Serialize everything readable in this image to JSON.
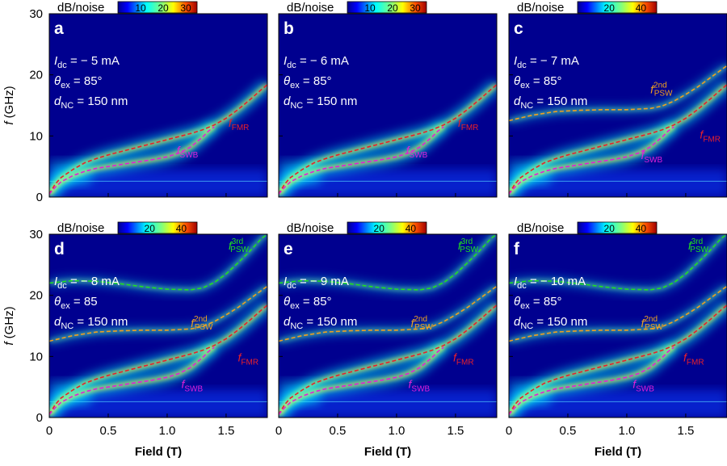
{
  "figure": {
    "y_axis_label": "f (GHz)",
    "x_axis_label": "Field (T)",
    "colorbar_label": "dB/noise",
    "y_ticks": [
      "0",
      "10",
      "20",
      "30"
    ],
    "x_ticks": [
      "0",
      "0.5",
      "1.0",
      "1.5"
    ],
    "colors": {
      "fmr": "#e8202a",
      "swb": "#e020d8",
      "psw2": "#f0a020",
      "psw3": "#20e020",
      "background": "#00008f"
    }
  },
  "chart_data": [
    {
      "type": "heatmap",
      "panel": "a",
      "params": [
        "Idc = − 5 mA",
        "θex = 85°",
        "dNC = 150 nm"
      ],
      "colorbar_ticks": [
        "10",
        "20",
        "30"
      ],
      "colorbar_range": [
        0,
        35
      ],
      "xlim": [
        0,
        1.85
      ],
      "ylim": [
        0,
        30
      ],
      "xlabel": "Field (T)",
      "ylabel": "f (GHz)",
      "annotations": [
        {
          "label": "fFMR",
          "x": 1.52,
          "y": 11.5
        },
        {
          "label": "fSWB",
          "x": 1.08,
          "y": 7.0
        }
      ],
      "series": [
        {
          "name": "FMR",
          "x": [
            0,
            0.05,
            0.1,
            0.2,
            0.3,
            0.4,
            0.5,
            0.6,
            0.7,
            0.8,
            0.9,
            1.0,
            1.1,
            1.2,
            1.3,
            1.4,
            1.5,
            1.6,
            1.7,
            1.8,
            1.85
          ],
          "y": [
            0.5,
            2.1,
            3.2,
            4.5,
            5.6,
            6.3,
            6.9,
            7.4,
            7.9,
            8.4,
            8.9,
            9.4,
            9.9,
            10.4,
            11.0,
            11.8,
            12.9,
            14.3,
            15.9,
            17.6,
            18.4
          ]
        },
        {
          "name": "SWB",
          "x": [
            0,
            0.05,
            0.1,
            0.2,
            0.3,
            0.4,
            0.5,
            0.6,
            0.7,
            0.8,
            0.9,
            1.0,
            1.1,
            1.2,
            1.3,
            1.35,
            1.4
          ],
          "y": [
            0.5,
            1.6,
            2.5,
            3.5,
            4.2,
            4.7,
            5.0,
            5.3,
            5.6,
            5.9,
            6.2,
            6.6,
            7.2,
            8.2,
            9.8,
            10.8,
            11.5
          ]
        }
      ]
    },
    {
      "type": "heatmap",
      "panel": "b",
      "params": [
        "Idc = − 6 mA",
        "θex = 85°",
        "dNC = 150 nm"
      ],
      "colorbar_ticks": [
        "10",
        "20",
        "30"
      ],
      "colorbar_range": [
        0,
        35
      ],
      "xlim": [
        0,
        1.85
      ],
      "ylim": [
        0,
        30
      ],
      "xlabel": "Field (T)",
      "ylabel": "f (GHz)",
      "annotations": [
        {
          "label": "fFMR",
          "x": 1.52,
          "y": 11.5
        },
        {
          "label": "fSWB",
          "x": 1.08,
          "y": 7.0
        }
      ],
      "series": [
        {
          "name": "FMR",
          "x": [
            0,
            0.05,
            0.1,
            0.2,
            0.3,
            0.4,
            0.5,
            0.6,
            0.7,
            0.8,
            0.9,
            1.0,
            1.1,
            1.2,
            1.3,
            1.4,
            1.5,
            1.6,
            1.7,
            1.8,
            1.85
          ],
          "y": [
            0.5,
            2.1,
            3.2,
            4.5,
            5.6,
            6.3,
            6.9,
            7.4,
            7.9,
            8.4,
            8.9,
            9.4,
            9.9,
            10.4,
            11.0,
            11.8,
            12.9,
            14.3,
            15.9,
            17.6,
            18.4
          ]
        },
        {
          "name": "SWB",
          "x": [
            0,
            0.05,
            0.1,
            0.2,
            0.3,
            0.4,
            0.5,
            0.6,
            0.7,
            0.8,
            0.9,
            1.0,
            1.1,
            1.2,
            1.3,
            1.35,
            1.4
          ],
          "y": [
            0.5,
            1.6,
            2.5,
            3.5,
            4.2,
            4.7,
            5.0,
            5.3,
            5.6,
            5.9,
            6.2,
            6.6,
            7.2,
            8.2,
            9.8,
            10.8,
            11.5
          ]
        }
      ]
    },
    {
      "type": "heatmap",
      "panel": "c",
      "params": [
        "Idc = − 7 mA",
        "θex = 85°",
        "dNC = 150 nm"
      ],
      "colorbar_ticks": [
        "20",
        "40"
      ],
      "colorbar_range": [
        0,
        50
      ],
      "xlim": [
        0,
        1.85
      ],
      "ylim": [
        0,
        30
      ],
      "xlabel": "Field (T)",
      "ylabel": "f (GHz)",
      "annotations": [
        {
          "label": "fFMR",
          "x": 1.62,
          "y": 9.6
        },
        {
          "label": "fSWB",
          "x": 1.12,
          "y": 6.2
        },
        {
          "label": "f2ndPSW",
          "x": 1.2,
          "y": 17.0
        }
      ],
      "series": [
        {
          "name": "FMR",
          "x": [
            0,
            0.05,
            0.1,
            0.2,
            0.3,
            0.4,
            0.5,
            0.6,
            0.7,
            0.8,
            0.9,
            1.0,
            1.1,
            1.2,
            1.3,
            1.4,
            1.5,
            1.6,
            1.7,
            1.8,
            1.85
          ],
          "y": [
            0.5,
            2.1,
            3.2,
            4.5,
            5.6,
            6.3,
            6.9,
            7.4,
            7.9,
            8.4,
            8.9,
            9.4,
            9.9,
            10.4,
            11.0,
            11.8,
            12.9,
            14.3,
            15.9,
            17.6,
            18.4
          ]
        },
        {
          "name": "SWB",
          "x": [
            0,
            0.05,
            0.1,
            0.2,
            0.3,
            0.4,
            0.5,
            0.6,
            0.7,
            0.8,
            0.9,
            1.0,
            1.1,
            1.2,
            1.3,
            1.35,
            1.4
          ],
          "y": [
            0.5,
            1.6,
            2.5,
            3.5,
            4.2,
            4.7,
            5.0,
            5.3,
            5.6,
            5.9,
            6.2,
            6.6,
            7.2,
            8.2,
            9.8,
            10.8,
            11.5
          ]
        },
        {
          "name": "PSW2",
          "x": [
            0,
            0.2,
            0.4,
            0.6,
            0.8,
            1.0,
            1.2,
            1.3,
            1.4,
            1.5,
            1.6,
            1.7,
            1.8,
            1.85
          ],
          "y": [
            12.5,
            13.4,
            14.0,
            14.2,
            14.3,
            14.3,
            14.5,
            14.9,
            15.7,
            16.8,
            18.0,
            19.4,
            20.8,
            21.5
          ]
        }
      ]
    },
    {
      "type": "heatmap",
      "panel": "d",
      "params": [
        "Idc = − 8 mA",
        "θex = 85",
        "dNC = 150 nm"
      ],
      "colorbar_ticks": [
        "20",
        "40"
      ],
      "colorbar_range": [
        0,
        50
      ],
      "xlim": [
        0,
        1.85
      ],
      "ylim": [
        0,
        30
      ],
      "xlabel": "Field (T)",
      "ylabel": "f (GHz)",
      "annotations": [
        {
          "label": "fFMR",
          "x": 1.6,
          "y": 9.2
        },
        {
          "label": "fSWB",
          "x": 1.12,
          "y": 4.8
        },
        {
          "label": "f2ndPSW",
          "x": 1.2,
          "y": 14.8
        },
        {
          "label": "f3rdPSW",
          "x": 1.52,
          "y": 27.5
        }
      ],
      "series": [
        {
          "name": "FMR",
          "x": [
            0,
            0.05,
            0.1,
            0.2,
            0.3,
            0.4,
            0.5,
            0.6,
            0.7,
            0.8,
            0.9,
            1.0,
            1.1,
            1.2,
            1.3,
            1.4,
            1.5,
            1.6,
            1.7,
            1.8,
            1.85
          ],
          "y": [
            0.5,
            2.1,
            3.2,
            4.5,
            5.6,
            6.3,
            6.9,
            7.4,
            7.9,
            8.4,
            8.9,
            9.4,
            9.9,
            10.4,
            11.0,
            11.8,
            12.9,
            14.3,
            15.9,
            17.6,
            18.4
          ]
        },
        {
          "name": "SWB",
          "x": [
            0,
            0.05,
            0.1,
            0.2,
            0.3,
            0.4,
            0.5,
            0.6,
            0.7,
            0.8,
            0.9,
            1.0,
            1.1,
            1.2,
            1.3,
            1.35,
            1.4
          ],
          "y": [
            0.5,
            1.6,
            2.5,
            3.5,
            4.2,
            4.7,
            5.0,
            5.3,
            5.6,
            5.9,
            6.2,
            6.6,
            7.2,
            8.2,
            9.8,
            10.8,
            11.5
          ]
        },
        {
          "name": "PSW2",
          "x": [
            0,
            0.2,
            0.4,
            0.6,
            0.8,
            1.0,
            1.2,
            1.3,
            1.4,
            1.5,
            1.6,
            1.7,
            1.8,
            1.85
          ],
          "y": [
            12.5,
            13.4,
            14.0,
            14.2,
            14.3,
            14.3,
            14.5,
            14.9,
            15.7,
            16.8,
            18.0,
            19.4,
            20.8,
            21.5
          ]
        },
        {
          "name": "PSW3",
          "x": [
            0,
            0.2,
            0.4,
            0.6,
            0.8,
            1.0,
            1.2,
            1.3,
            1.4,
            1.5,
            1.6,
            1.7,
            1.8,
            1.85
          ],
          "y": [
            22.0,
            22.4,
            22.3,
            21.9,
            21.4,
            21.0,
            20.9,
            21.2,
            22.1,
            23.5,
            25.3,
            27.2,
            29.3,
            30.0
          ]
        }
      ]
    },
    {
      "type": "heatmap",
      "panel": "e",
      "params": [
        "Idc = − 9 mA",
        "θex = 85°",
        "dNC = 150 nm"
      ],
      "colorbar_ticks": [
        "20",
        "40"
      ],
      "colorbar_range": [
        0,
        50
      ],
      "xlim": [
        0,
        1.85
      ],
      "ylim": [
        0,
        30
      ],
      "xlabel": "Field (T)",
      "ylabel": "f (GHz)",
      "annotations": [
        {
          "label": "fFMR",
          "x": 1.48,
          "y": 9.2
        },
        {
          "label": "fSWB",
          "x": 1.1,
          "y": 4.8
        },
        {
          "label": "f2ndPSW",
          "x": 1.12,
          "y": 14.8
        },
        {
          "label": "f3rdPSW",
          "x": 1.52,
          "y": 27.5
        }
      ],
      "series": [
        {
          "name": "FMR",
          "x": [
            0,
            0.05,
            0.1,
            0.2,
            0.3,
            0.4,
            0.5,
            0.6,
            0.7,
            0.8,
            0.9,
            1.0,
            1.1,
            1.2,
            1.3,
            1.4,
            1.5,
            1.6,
            1.7,
            1.8,
            1.85
          ],
          "y": [
            0.5,
            2.1,
            3.2,
            4.5,
            5.6,
            6.3,
            6.9,
            7.4,
            7.9,
            8.4,
            8.9,
            9.4,
            9.9,
            10.4,
            11.0,
            11.8,
            12.9,
            14.3,
            15.9,
            17.6,
            18.4
          ]
        },
        {
          "name": "SWB",
          "x": [
            0,
            0.05,
            0.1,
            0.2,
            0.3,
            0.4,
            0.5,
            0.6,
            0.7,
            0.8,
            0.9,
            1.0,
            1.1,
            1.2,
            1.3,
            1.35,
            1.4
          ],
          "y": [
            0.5,
            1.6,
            2.5,
            3.5,
            4.2,
            4.7,
            5.0,
            5.3,
            5.6,
            5.9,
            6.2,
            6.6,
            7.2,
            8.2,
            9.8,
            10.8,
            11.5
          ]
        },
        {
          "name": "PSW2",
          "x": [
            0,
            0.2,
            0.4,
            0.6,
            0.8,
            1.0,
            1.2,
            1.3,
            1.4,
            1.5,
            1.6,
            1.7,
            1.8,
            1.85
          ],
          "y": [
            12.5,
            13.4,
            14.0,
            14.2,
            14.3,
            14.3,
            14.5,
            14.9,
            15.7,
            16.8,
            18.0,
            19.4,
            20.8,
            21.5
          ]
        },
        {
          "name": "PSW3",
          "x": [
            0,
            0.2,
            0.4,
            0.6,
            0.8,
            1.0,
            1.2,
            1.3,
            1.4,
            1.5,
            1.6,
            1.7,
            1.8,
            1.85
          ],
          "y": [
            22.0,
            22.4,
            22.3,
            21.9,
            21.4,
            21.0,
            20.9,
            21.2,
            22.1,
            23.5,
            25.3,
            27.2,
            29.3,
            30.0
          ]
        }
      ]
    },
    {
      "type": "heatmap",
      "panel": "f",
      "params": [
        "Idc = − 10 mA",
        "θex = 85°",
        "dNC = 150 nm"
      ],
      "colorbar_ticks": [
        "20",
        "40"
      ],
      "colorbar_range": [
        0,
        50
      ],
      "xlim": [
        0,
        1.85
      ],
      "ylim": [
        0,
        30
      ],
      "xlabel": "Field (T)",
      "ylabel": "f (GHz)",
      "annotations": [
        {
          "label": "fFMR",
          "x": 1.48,
          "y": 9.2
        },
        {
          "label": "fSWB",
          "x": 1.05,
          "y": 4.8
        },
        {
          "label": "f2ndPSW",
          "x": 1.12,
          "y": 14.8
        },
        {
          "label": "f3rdPSW",
          "x": 1.52,
          "y": 27.5
        }
      ],
      "series": [
        {
          "name": "FMR",
          "x": [
            0,
            0.05,
            0.1,
            0.2,
            0.3,
            0.4,
            0.5,
            0.6,
            0.7,
            0.8,
            0.9,
            1.0,
            1.1,
            1.2,
            1.3,
            1.4,
            1.5,
            1.6,
            1.7,
            1.8,
            1.85
          ],
          "y": [
            0.5,
            2.1,
            3.2,
            4.5,
            5.6,
            6.3,
            6.9,
            7.4,
            7.9,
            8.4,
            8.9,
            9.4,
            9.9,
            10.4,
            11.0,
            11.8,
            12.9,
            14.3,
            15.9,
            17.6,
            18.4
          ]
        },
        {
          "name": "SWB",
          "x": [
            0,
            0.05,
            0.1,
            0.2,
            0.3,
            0.4,
            0.5,
            0.6,
            0.7,
            0.8,
            0.9,
            1.0,
            1.1,
            1.2,
            1.3,
            1.35,
            1.4
          ],
          "y": [
            0.5,
            1.6,
            2.5,
            3.5,
            4.2,
            4.7,
            5.0,
            5.3,
            5.6,
            5.9,
            6.2,
            6.6,
            7.2,
            8.2,
            9.8,
            10.8,
            11.5
          ]
        },
        {
          "name": "PSW2",
          "x": [
            0,
            0.2,
            0.4,
            0.6,
            0.8,
            1.0,
            1.2,
            1.3,
            1.4,
            1.5,
            1.6,
            1.7,
            1.8,
            1.85
          ],
          "y": [
            12.5,
            13.4,
            14.0,
            14.2,
            14.3,
            14.3,
            14.5,
            14.9,
            15.7,
            16.8,
            18.0,
            19.4,
            20.8,
            21.5
          ]
        },
        {
          "name": "PSW3",
          "x": [
            0,
            0.2,
            0.4,
            0.6,
            0.8,
            1.0,
            1.2,
            1.3,
            1.4,
            1.5,
            1.6,
            1.7,
            1.8,
            1.85
          ],
          "y": [
            22.0,
            22.4,
            22.3,
            21.9,
            21.4,
            21.0,
            20.9,
            21.2,
            22.1,
            23.5,
            25.3,
            27.2,
            29.3,
            30.0
          ]
        }
      ]
    }
  ]
}
